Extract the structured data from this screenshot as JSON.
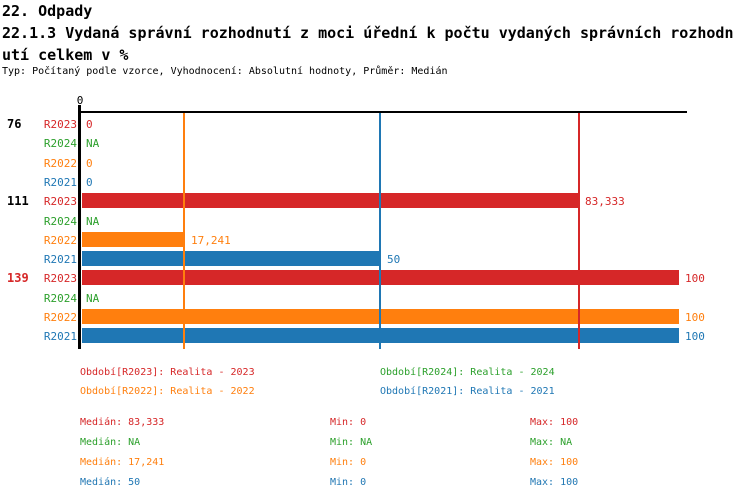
{
  "header": {
    "title": "22. Odpady",
    "subtitle_line1": "22.1.3 Vydaná správní rozhodnutí z moci úřední k počtu vydaných správních rozhodn",
    "subtitle_line2": "utí celkem v %",
    "meta": "Typ: Počítaný podle vzorce, Vyhodnocení: Absolutní hodnoty, Průměr: Medián"
  },
  "colors": {
    "R2023": "#d62728",
    "R2024": "#2ca02c",
    "R2022": "#ff7f0e",
    "R2021": "#1f77b4",
    "axis": "#000000",
    "black": "#000000"
  },
  "chart_data": {
    "type": "bar",
    "orientation": "horizontal",
    "title": "22.1.3 Vydaná správní rozhodnutí z moci úřední k počtu vydaných správních rozhodnutí celkem v %",
    "xlabel": "",
    "ylabel": "",
    "xlim": [
      0,
      100
    ],
    "x_tick_labels": [
      "0"
    ],
    "series_names": [
      "R2023",
      "R2024",
      "R2022",
      "R2021"
    ],
    "groups": [
      {
        "label": "76",
        "label_color": "#000000",
        "bars": [
          {
            "series": "R2023",
            "value": 0,
            "display": "0"
          },
          {
            "series": "R2024",
            "value": null,
            "display": "NA"
          },
          {
            "series": "R2022",
            "value": 0,
            "display": "0"
          },
          {
            "series": "R2021",
            "value": 0,
            "display": "0"
          }
        ]
      },
      {
        "label": "111",
        "label_color": "#000000",
        "bars": [
          {
            "series": "R2023",
            "value": 83.333,
            "display": "83,333"
          },
          {
            "series": "R2024",
            "value": null,
            "display": "NA"
          },
          {
            "series": "R2022",
            "value": 17.241,
            "display": "17,241"
          },
          {
            "series": "R2021",
            "value": 50,
            "display": "50"
          }
        ]
      },
      {
        "label": "139",
        "label_color": "#d62728",
        "bars": [
          {
            "series": "R2023",
            "value": 100,
            "display": "100"
          },
          {
            "series": "R2024",
            "value": null,
            "display": "NA"
          },
          {
            "series": "R2022",
            "value": 100,
            "display": "100"
          },
          {
            "series": "R2021",
            "value": 100,
            "display": "100"
          }
        ]
      }
    ],
    "median_lines": [
      {
        "series": "R2022",
        "value": 17.241
      },
      {
        "series": "R2021",
        "value": 50
      },
      {
        "series": "R2023",
        "value": 83.333
      }
    ],
    "legend": [
      {
        "series": "R2023",
        "label": "Období[R2023]: Realita - 2023"
      },
      {
        "series": "R2024",
        "label": "Období[R2024]: Realita - 2024"
      },
      {
        "series": "R2022",
        "label": "Období[R2022]: Realita - 2022"
      },
      {
        "series": "R2021",
        "label": "Období[R2021]: Realita - 2021"
      }
    ],
    "stats": [
      {
        "series": "R2023",
        "median": "Medián: 83,333",
        "min": "Min: 0",
        "max": "Max: 100"
      },
      {
        "series": "R2024",
        "median": "Medián: NA",
        "min": "Min: NA",
        "max": "Max: NA"
      },
      {
        "series": "R2022",
        "median": "Medián: 17,241",
        "min": "Min: 0",
        "max": "Max: 100"
      },
      {
        "series": "R2021",
        "median": "Medián: 50",
        "min": "Min: 0",
        "max": "Max: 100"
      }
    ]
  }
}
